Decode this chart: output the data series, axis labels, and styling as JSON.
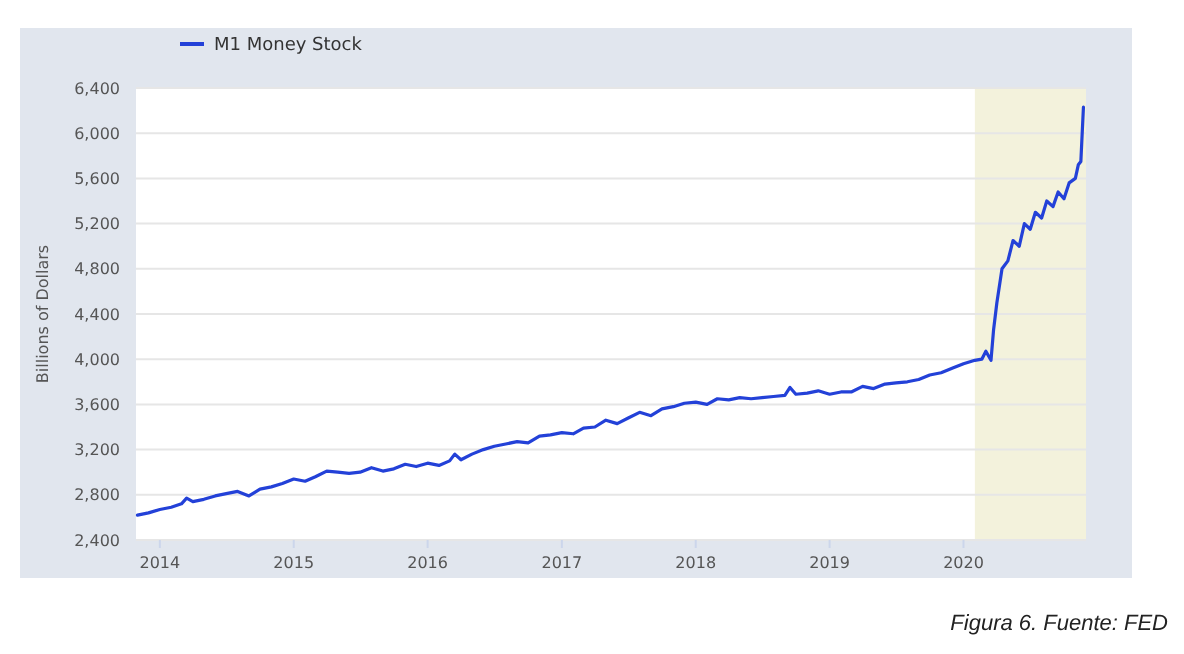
{
  "chart_data": {
    "type": "line",
    "ylabel": "Billions of Dollars",
    "annotations": [
      "Figura 6. Fuente: FED"
    ],
    "xlim": [
      "2013-10-28",
      "2020-11-30"
    ],
    "xticks": [
      {
        "value": "2014-01-01",
        "label": "2014"
      },
      {
        "value": "2015-01-01",
        "label": "2015"
      },
      {
        "value": "2016-01-01",
        "label": "2016"
      },
      {
        "value": "2017-01-01",
        "label": "2017"
      },
      {
        "value": "2018-01-01",
        "label": "2018"
      },
      {
        "value": "2019-01-01",
        "label": "2019"
      },
      {
        "value": "2020-01-01",
        "label": "2020"
      }
    ],
    "ylim": [
      2400,
      6400
    ],
    "yticks": [
      {
        "value": 2400,
        "label": "2,400"
      },
      {
        "value": 2800,
        "label": "2,800"
      },
      {
        "value": 3200,
        "label": "3,200"
      },
      {
        "value": 3600,
        "label": "3,600"
      },
      {
        "value": 4000,
        "label": "4,000"
      },
      {
        "value": 4400,
        "label": "4,400"
      },
      {
        "value": 4800,
        "label": "4,800"
      },
      {
        "value": 5200,
        "label": "5,200"
      },
      {
        "value": 5600,
        "label": "5,600"
      },
      {
        "value": 6000,
        "label": "6,000"
      },
      {
        "value": 6400,
        "label": "6,400"
      }
    ],
    "grid": "y",
    "legend": "top left",
    "marker": "none",
    "line_style": "solid",
    "bands": [
      {
        "axis": "x",
        "from": "2020-02-01",
        "to": "2020-11-30",
        "color": "#f3f2dc"
      }
    ],
    "x": [
      "2013-11-01",
      "2013-12-01",
      "2014-01-01",
      "2014-02-01",
      "2014-03-01",
      "2014-03-15",
      "2014-04-01",
      "2014-05-01",
      "2014-06-01",
      "2014-07-01",
      "2014-08-01",
      "2014-09-01",
      "2014-10-01",
      "2014-11-01",
      "2014-12-01",
      "2015-01-01",
      "2015-02-01",
      "2015-03-01",
      "2015-04-01",
      "2015-05-01",
      "2015-06-01",
      "2015-07-01",
      "2015-08-01",
      "2015-09-01",
      "2015-10-01",
      "2015-11-01",
      "2015-12-01",
      "2016-01-01",
      "2016-02-01",
      "2016-03-01",
      "2016-03-15",
      "2016-04-01",
      "2016-05-01",
      "2016-06-01",
      "2016-07-01",
      "2016-08-01",
      "2016-09-01",
      "2016-10-01",
      "2016-11-01",
      "2016-12-01",
      "2017-01-01",
      "2017-02-01",
      "2017-03-01",
      "2017-04-01",
      "2017-05-01",
      "2017-06-01",
      "2017-07-01",
      "2017-08-01",
      "2017-09-01",
      "2017-10-01",
      "2017-11-01",
      "2017-12-01",
      "2018-01-01",
      "2018-02-01",
      "2018-03-01",
      "2018-04-01",
      "2018-05-01",
      "2018-06-01",
      "2018-07-01",
      "2018-08-01",
      "2018-09-01",
      "2018-09-15",
      "2018-10-01",
      "2018-11-01",
      "2018-12-01",
      "2019-01-01",
      "2019-02-01",
      "2019-03-01",
      "2019-04-01",
      "2019-05-01",
      "2019-06-01",
      "2019-07-01",
      "2019-08-01",
      "2019-09-01",
      "2019-10-01",
      "2019-11-01",
      "2019-12-01",
      "2020-01-01",
      "2020-02-01",
      "2020-02-20",
      "2020-03-02",
      "2020-03-16",
      "2020-03-23",
      "2020-04-01",
      "2020-04-15",
      "2020-05-01",
      "2020-05-15",
      "2020-06-01",
      "2020-06-15",
      "2020-07-01",
      "2020-07-15",
      "2020-08-01",
      "2020-08-15",
      "2020-09-01",
      "2020-09-15",
      "2020-10-01",
      "2020-10-15",
      "2020-11-01",
      "2020-11-09",
      "2020-11-16",
      "2020-11-23"
    ],
    "series": [
      {
        "name": "M1 Money Stock",
        "color": "#2341d8",
        "values": [
          2620,
          2640,
          2670,
          2690,
          2720,
          2770,
          2740,
          2760,
          2790,
          2810,
          2830,
          2790,
          2850,
          2870,
          2900,
          2940,
          2920,
          2960,
          3010,
          3000,
          2990,
          3000,
          3040,
          3010,
          3030,
          3070,
          3050,
          3080,
          3060,
          3100,
          3160,
          3110,
          3160,
          3200,
          3230,
          3250,
          3270,
          3260,
          3320,
          3330,
          3350,
          3340,
          3390,
          3400,
          3460,
          3430,
          3480,
          3530,
          3500,
          3560,
          3580,
          3610,
          3620,
          3600,
          3650,
          3640,
          3660,
          3650,
          3660,
          3670,
          3680,
          3750,
          3690,
          3700,
          3720,
          3690,
          3710,
          3710,
          3760,
          3740,
          3780,
          3790,
          3800,
          3820,
          3860,
          3880,
          3920,
          3960,
          3990,
          4000,
          4070,
          3990,
          4260,
          4500,
          4800,
          4870,
          5050,
          5000,
          5200,
          5150,
          5300,
          5250,
          5400,
          5350,
          5480,
          5420,
          5560,
          5600,
          5720,
          5750,
          6230
        ]
      }
    ]
  }
}
